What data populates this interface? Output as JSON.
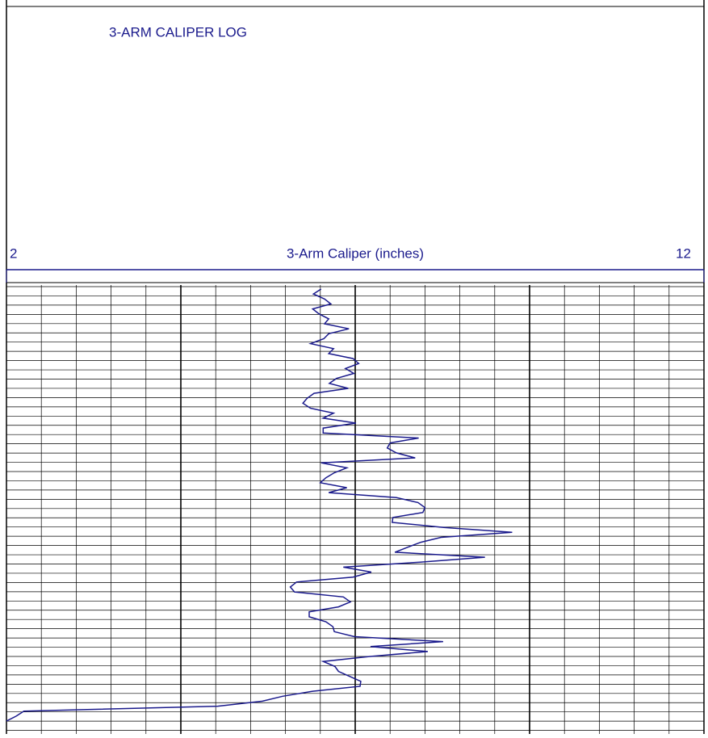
{
  "chart_data": {
    "type": "line",
    "title": "3-ARM CALIPER LOG",
    "xlabel": "3-Arm Caliper (inches)",
    "xlim": [
      2,
      12
    ],
    "xticks": [
      2,
      12
    ],
    "color": "#1a1a8c",
    "grid": true,
    "values": [
      6.51,
      6.4,
      6.56,
      6.65,
      6.39,
      6.48,
      6.62,
      6.56,
      6.91,
      6.62,
      6.55,
      6.36,
      6.69,
      6.62,
      6.97,
      7.05,
      6.86,
      6.98,
      6.73,
      6.63,
      6.9,
      6.41,
      6.31,
      6.25,
      6.36,
      6.69,
      6.54,
      7.01,
      6.54,
      6.54,
      7.91,
      7.5,
      7.46,
      7.59,
      7.86,
      6.51,
      6.88,
      6.7,
      6.58,
      6.5,
      6.88,
      6.62,
      7.59,
      7.9,
      8.0,
      7.97,
      7.54,
      7.53,
      8.27,
      9.25,
      8.23,
      7.94,
      7.75,
      7.57,
      8.86,
      7.93,
      6.83,
      7.23,
      6.97,
      6.16,
      6.07,
      6.13,
      6.83,
      6.93,
      6.76,
      6.34,
      6.34,
      6.58,
      6.68,
      6.7,
      6.99,
      8.26,
      7.22,
      8.04,
      7.2,
      6.54,
      6.71,
      6.76,
      6.92,
      7.08,
      7.07,
      6.39,
      5.96,
      5.67,
      5.03,
      2.25,
      2.14,
      2.0
    ]
  }
}
